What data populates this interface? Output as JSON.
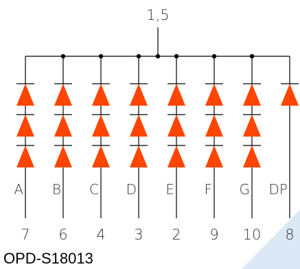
{
  "common_pin_label": "1,5",
  "part_number": "OPD-S18013",
  "led_color": "#ff4500",
  "columns": [
    {
      "segment": "A",
      "pin": "7",
      "led_count": 3
    },
    {
      "segment": "B",
      "pin": "6",
      "led_count": 3
    },
    {
      "segment": "C",
      "pin": "4",
      "led_count": 3
    },
    {
      "segment": "D",
      "pin": "3",
      "led_count": 3
    },
    {
      "segment": "E",
      "pin": "2",
      "led_count": 3
    },
    {
      "segment": "F",
      "pin": "9",
      "led_count": 3
    },
    {
      "segment": "G",
      "pin": "10",
      "led_count": 3
    },
    {
      "segment": "DP",
      "pin": "8",
      "led_count": 1
    }
  ]
}
